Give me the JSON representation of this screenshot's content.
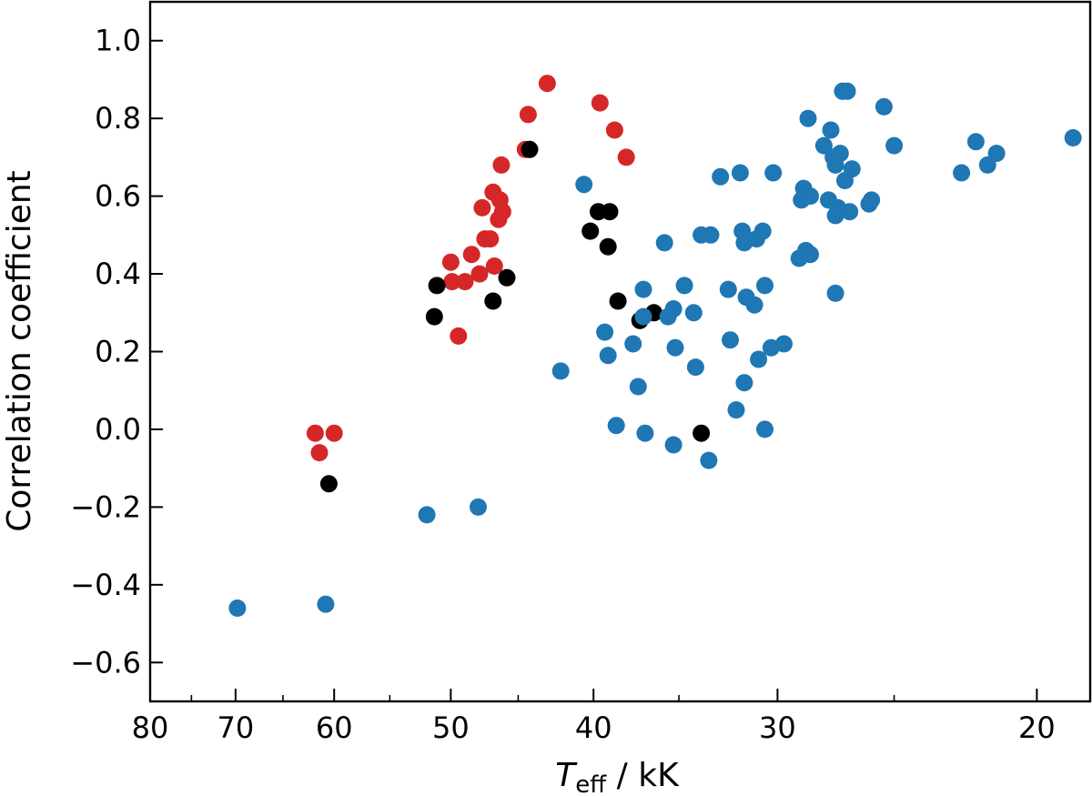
{
  "chart_data": {
    "type": "scatter",
    "title": "",
    "xlabel": "T_eff / kK",
    "xlabel_parts": {
      "symbol": "T",
      "subscript": "eff",
      "unit": " / kK"
    },
    "ylabel": "Correlation coefficient",
    "xscale": "log",
    "x_inverted": true,
    "xlim": [
      80,
      18.4
    ],
    "ylim": [
      -0.7,
      1.1
    ],
    "grid": false,
    "legend": null,
    "x_ticks": [
      80,
      70,
      60,
      50,
      40,
      30,
      20
    ],
    "x_tick_labels": [
      "80",
      "70",
      "60",
      "50",
      "40",
      "30",
      "20"
    ],
    "x_minor_ticks": [
      75,
      65,
      55,
      45,
      35,
      25
    ],
    "y_ticks": [
      1.0,
      0.8,
      0.6,
      0.4,
      0.2,
      0.0,
      -0.2,
      -0.4,
      -0.6
    ],
    "y_tick_labels": [
      "1.0",
      "0.8",
      "0.6",
      "0.4",
      "0.2",
      "0.0",
      "−0.2",
      "−0.4",
      "−0.6"
    ],
    "series": [
      {
        "name": "red",
        "color": "#d62728",
        "points": [
          [
            61.8,
            -0.01
          ],
          [
            60.0,
            -0.01
          ],
          [
            61.4,
            -0.06
          ],
          [
            43.0,
            0.89
          ],
          [
            44.3,
            0.81
          ],
          [
            39.6,
            0.84
          ],
          [
            38.7,
            0.77
          ],
          [
            38.0,
            0.7
          ],
          [
            44.5,
            0.72
          ],
          [
            46.2,
            0.68
          ],
          [
            46.8,
            0.61
          ],
          [
            46.3,
            0.59
          ],
          [
            47.6,
            0.57
          ],
          [
            46.1,
            0.56
          ],
          [
            46.4,
            0.54
          ],
          [
            47.4,
            0.49
          ],
          [
            47.0,
            0.49
          ],
          [
            48.4,
            0.45
          ],
          [
            46.7,
            0.42
          ],
          [
            50.0,
            0.43
          ],
          [
            49.9,
            0.38
          ],
          [
            48.9,
            0.38
          ],
          [
            47.8,
            0.4
          ],
          [
            49.4,
            0.24
          ]
        ]
      },
      {
        "name": "black",
        "color": "#000000",
        "points": [
          [
            60.5,
            -0.14
          ],
          [
            44.2,
            0.72
          ],
          [
            51.1,
            0.37
          ],
          [
            51.3,
            0.29
          ],
          [
            46.8,
            0.33
          ],
          [
            45.8,
            0.39
          ],
          [
            39.7,
            0.56
          ],
          [
            39.0,
            0.56
          ],
          [
            40.2,
            0.51
          ],
          [
            39.1,
            0.47
          ],
          [
            38.5,
            0.33
          ],
          [
            36.4,
            0.3
          ],
          [
            37.2,
            0.28
          ],
          [
            33.8,
            -0.01
          ]
        ]
      },
      {
        "name": "blue",
        "color": "#1f77b4",
        "points": [
          [
            69.8,
            -0.46
          ],
          [
            60.8,
            -0.45
          ],
          [
            51.9,
            -0.22
          ],
          [
            47.9,
            -0.2
          ],
          [
            42.1,
            0.15
          ],
          [
            40.6,
            0.63
          ],
          [
            39.3,
            0.25
          ],
          [
            39.1,
            0.19
          ],
          [
            38.6,
            0.01
          ],
          [
            37.6,
            0.22
          ],
          [
            37.3,
            0.11
          ],
          [
            37.0,
            0.36
          ],
          [
            37.0,
            0.29
          ],
          [
            36.9,
            -0.01
          ],
          [
            35.8,
            0.48
          ],
          [
            35.6,
            0.29
          ],
          [
            35.3,
            0.31
          ],
          [
            35.2,
            0.21
          ],
          [
            35.3,
            -0.04
          ],
          [
            34.7,
            0.37
          ],
          [
            34.2,
            0.3
          ],
          [
            34.1,
            0.16
          ],
          [
            33.8,
            0.5
          ],
          [
            33.3,
            0.5
          ],
          [
            33.4,
            -0.08
          ],
          [
            32.8,
            0.65
          ],
          [
            32.4,
            0.36
          ],
          [
            32.3,
            0.23
          ],
          [
            32.0,
            0.05
          ],
          [
            31.8,
            0.66
          ],
          [
            31.7,
            0.51
          ],
          [
            31.6,
            0.48
          ],
          [
            31.5,
            0.34
          ],
          [
            31.6,
            0.12
          ],
          [
            31.1,
            0.32
          ],
          [
            31.0,
            0.49
          ],
          [
            30.9,
            0.18
          ],
          [
            30.7,
            0.51
          ],
          [
            30.6,
            0.37
          ],
          [
            30.6,
            0.0
          ],
          [
            30.3,
            0.21
          ],
          [
            30.2,
            0.66
          ],
          [
            29.7,
            0.22
          ],
          [
            29.0,
            0.44
          ],
          [
            28.9,
            0.59
          ],
          [
            28.8,
            0.62
          ],
          [
            28.7,
            0.46
          ],
          [
            28.6,
            0.8
          ],
          [
            28.5,
            0.6
          ],
          [
            28.5,
            0.45
          ],
          [
            27.9,
            0.73
          ],
          [
            27.7,
            0.59
          ],
          [
            27.6,
            0.77
          ],
          [
            27.5,
            0.7
          ],
          [
            27.4,
            0.68
          ],
          [
            27.4,
            0.55
          ],
          [
            27.4,
            0.35
          ],
          [
            27.3,
            0.57
          ],
          [
            27.2,
            0.71
          ],
          [
            27.0,
            0.64
          ],
          [
            27.1,
            0.87
          ],
          [
            26.9,
            0.87
          ],
          [
            26.8,
            0.56
          ],
          [
            26.7,
            0.67
          ],
          [
            26.0,
            0.58
          ],
          [
            25.9,
            0.59
          ],
          [
            25.4,
            0.83
          ],
          [
            25.0,
            0.73
          ],
          [
            22.5,
            0.66
          ],
          [
            22.0,
            0.74
          ],
          [
            21.6,
            0.68
          ],
          [
            21.3,
            0.71
          ],
          [
            18.9,
            0.75
          ]
        ]
      }
    ],
    "marker": {
      "shape": "circle",
      "radius_px": 9.5
    }
  }
}
